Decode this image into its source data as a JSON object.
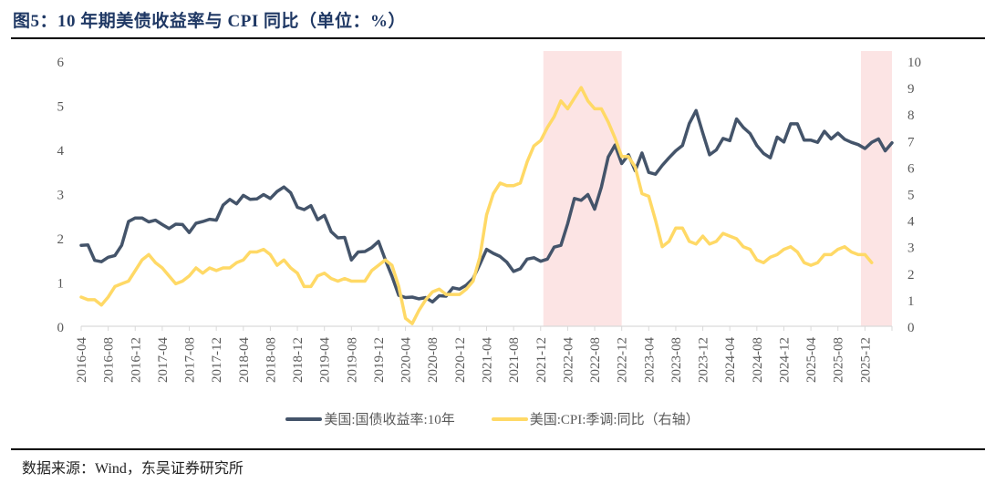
{
  "figure": {
    "title": "图5：10 年期美债收益率与 CPI 同比（单位：%）",
    "source": "数据来源：Wind，东吴证券研究所"
  },
  "colors": {
    "yield_line": "#44546a",
    "cpi_line": "#ffd966",
    "shade": "#fce4e4",
    "title": "#1f3864"
  },
  "chart_data": {
    "type": "line",
    "title": "10 年期美债收益率与 CPI 同比（单位：%）",
    "xlabel": "",
    "ylabel": "",
    "x_tick_labels": [
      "2016-04",
      "2016-08",
      "2016-12",
      "2017-04",
      "2017-08",
      "2017-12",
      "2018-04",
      "2018-08",
      "2018-12",
      "2019-04",
      "2019-08",
      "2019-12",
      "2020-04",
      "2020-08",
      "2020-12",
      "2021-04",
      "2021-08",
      "2021-12",
      "2022-04",
      "2022-08",
      "2022-12",
      "2023-04",
      "2023-08",
      "2023-12",
      "2024-04",
      "2024-08",
      "2024-12",
      "2025-04",
      "2025-08",
      "2025-12"
    ],
    "x_start": "2016-04",
    "x_end": "2026-04",
    "y_left": {
      "range": [
        0,
        6
      ],
      "ticks": [
        "0",
        "1",
        "2",
        "3",
        "4",
        "5",
        "6"
      ]
    },
    "y_right": {
      "range": [
        0,
        10
      ],
      "ticks": [
        "0",
        "1",
        "2",
        "3",
        "4",
        "5",
        "6",
        "7",
        "8",
        "9",
        "10"
      ]
    },
    "grid": false,
    "legend_position": "bottom",
    "shaded_periods": [
      {
        "start": "2021-12",
        "end": "2022-12"
      },
      {
        "start": "2025-11",
        "end": "2026-04"
      }
    ],
    "series": [
      {
        "name": "美国:国债收益率:10年",
        "axis": "left",
        "start": "2016-04",
        "values": [
          1.83,
          1.84,
          1.49,
          1.46,
          1.56,
          1.6,
          1.83,
          2.37,
          2.45,
          2.45,
          2.36,
          2.4,
          2.3,
          2.21,
          2.31,
          2.3,
          2.12,
          2.33,
          2.37,
          2.42,
          2.4,
          2.74,
          2.87,
          2.77,
          2.96,
          2.87,
          2.88,
          2.98,
          2.89,
          3.05,
          3.15,
          3.02,
          2.69,
          2.64,
          2.73,
          2.41,
          2.51,
          2.14,
          2.0,
          2.01,
          1.5,
          1.68,
          1.69,
          1.78,
          1.92,
          1.51,
          1.13,
          0.7,
          0.65,
          0.66,
          0.62,
          0.65,
          0.55,
          0.69,
          0.68,
          0.87,
          0.84,
          0.93,
          1.08,
          1.4,
          1.74,
          1.65,
          1.58,
          1.45,
          1.24,
          1.3,
          1.52,
          1.55,
          1.47,
          1.52,
          1.79,
          1.83,
          2.32,
          2.89,
          2.85,
          2.98,
          2.65,
          3.15,
          3.83,
          4.1,
          3.68,
          3.88,
          3.52,
          3.92,
          3.48,
          3.44,
          3.64,
          3.81,
          3.97,
          4.09,
          4.59,
          4.88,
          4.37,
          3.88,
          3.99,
          4.25,
          4.2,
          4.69,
          4.5,
          4.36,
          4.09,
          3.91,
          3.81,
          4.28,
          4.17,
          4.58,
          4.58,
          4.21,
          4.21,
          4.16,
          4.41,
          4.24,
          4.37,
          4.23,
          4.16,
          4.11,
          4.02,
          4.16,
          4.24,
          3.97,
          4.15
        ]
      },
      {
        "name": "美国:CPI:季调:同比（右轴）",
        "axis": "right",
        "start": "2016-04",
        "values": [
          1.1,
          1.0,
          1.0,
          0.8,
          1.1,
          1.5,
          1.6,
          1.7,
          2.1,
          2.5,
          2.7,
          2.4,
          2.2,
          1.9,
          1.6,
          1.7,
          1.9,
          2.2,
          2.0,
          2.2,
          2.1,
          2.2,
          2.2,
          2.4,
          2.5,
          2.8,
          2.8,
          2.9,
          2.7,
          2.3,
          2.5,
          2.2,
          2.0,
          1.5,
          1.5,
          1.9,
          2.0,
          1.8,
          1.7,
          1.8,
          1.7,
          1.7,
          1.7,
          2.1,
          2.3,
          2.5,
          2.3,
          1.5,
          0.3,
          0.1,
          0.6,
          1.0,
          1.3,
          1.4,
          1.2,
          1.2,
          1.2,
          1.4,
          1.7,
          2.6,
          4.2,
          5.0,
          5.4,
          5.3,
          5.3,
          5.4,
          6.2,
          6.8,
          7.0,
          7.5,
          7.9,
          8.5,
          8.2,
          8.6,
          9.0,
          8.5,
          8.2,
          8.2,
          7.7,
          7.1,
          6.4,
          6.4,
          6.0,
          5.0,
          4.9,
          4.0,
          3.0,
          3.2,
          3.7,
          3.7,
          3.2,
          3.1,
          3.4,
          3.1,
          3.2,
          3.5,
          3.4,
          3.3,
          3.0,
          2.9,
          2.5,
          2.4,
          2.6,
          2.7,
          2.9,
          3.0,
          2.8,
          2.4,
          2.3,
          2.4,
          2.7,
          2.7,
          2.9,
          3.0,
          2.8,
          2.7,
          2.7,
          2.4
        ]
      }
    ]
  }
}
